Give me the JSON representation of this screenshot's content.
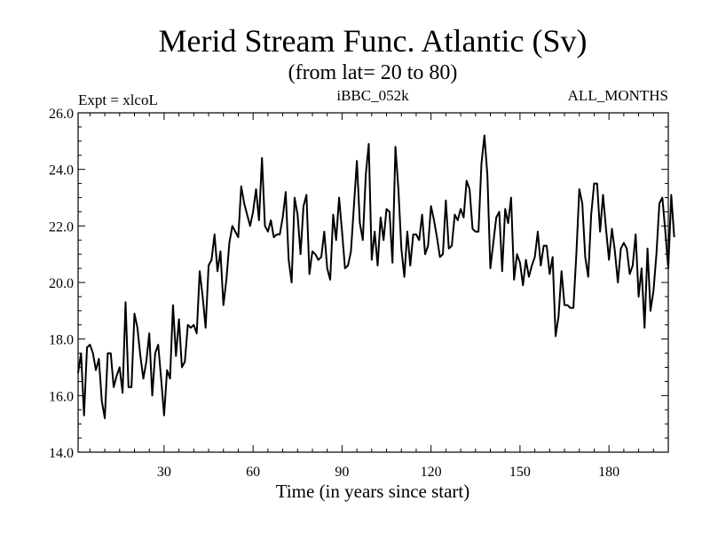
{
  "chart_data": {
    "type": "line",
    "title": "Merid Stream Func. Atlantic (Sv)",
    "subtitle": "(from lat= 20 to 80)",
    "expt_label": "Expt = xlcoL",
    "run_label": "iBBC_052k",
    "months_label": "ALL_MONTHS",
    "xlabel": "Time (in years since start)",
    "ylabel": "",
    "xlim": [
      1,
      200
    ],
    "ylim": [
      14.0,
      26.0
    ],
    "xticks": [
      30,
      60,
      90,
      120,
      150,
      180
    ],
    "xtick_labels": [
      "30",
      "60",
      "90",
      "120",
      "150",
      "180"
    ],
    "yticks": [
      14,
      16,
      18,
      20,
      22,
      24,
      26
    ],
    "ytick_labels": [
      "14.0",
      "16.0",
      "18.0",
      "20.0",
      "22.0",
      "24.0",
      "26.0"
    ],
    "line_color": "#000000",
    "series": [
      {
        "name": "Merid Stream Func.",
        "x_start": 1,
        "x_step": 1,
        "values": [
          16.8,
          17.5,
          15.3,
          17.7,
          17.8,
          17.5,
          16.9,
          17.3,
          15.8,
          15.2,
          17.5,
          17.5,
          16.3,
          16.7,
          17.0,
          16.1,
          19.3,
          16.3,
          16.3,
          18.9,
          18.4,
          17.4,
          16.6,
          17.2,
          18.2,
          16.0,
          17.5,
          17.8,
          16.6,
          15.3,
          16.9,
          16.6,
          19.2,
          17.4,
          18.7,
          17.0,
          17.2,
          18.5,
          18.4,
          18.5,
          18.2,
          20.4,
          19.5,
          18.4,
          20.6,
          20.8,
          21.7,
          20.4,
          21.1,
          19.2,
          20.1,
          21.4,
          22.0,
          21.8,
          21.6,
          23.4,
          22.8,
          22.4,
          22.0,
          22.5,
          23.3,
          22.2,
          24.4,
          22.0,
          21.8,
          22.2,
          21.6,
          21.7,
          21.7,
          22.3,
          23.2,
          20.8,
          20.0,
          23.0,
          22.4,
          21.0,
          22.7,
          23.1,
          20.3,
          21.1,
          21.0,
          20.8,
          20.9,
          21.8,
          20.5,
          20.1,
          22.4,
          21.5,
          23.0,
          21.8,
          20.5,
          20.6,
          21.1,
          22.7,
          24.3,
          22.1,
          21.5,
          23.8,
          24.9,
          20.8,
          21.8,
          20.6,
          22.3,
          21.5,
          22.6,
          22.5,
          20.7,
          24.8,
          23.3,
          21.2,
          20.2,
          21.8,
          20.6,
          21.7,
          21.7,
          21.5,
          22.4,
          21.0,
          21.3,
          22.7,
          22.2,
          21.6,
          20.9,
          21.0,
          22.9,
          21.2,
          21.3,
          22.4,
          22.2,
          22.6,
          22.3,
          23.6,
          23.3,
          21.9,
          21.8,
          21.8,
          24.2,
          25.2,
          23.8,
          20.5,
          21.4,
          22.3,
          22.5,
          20.4,
          22.6,
          22.1,
          23.0,
          20.1,
          21.0,
          20.7,
          19.9,
          20.8,
          20.2,
          20.6,
          20.9,
          21.8,
          20.6,
          21.3,
          21.3,
          20.3,
          20.9,
          18.1,
          18.8,
          20.4,
          19.2,
          19.2,
          19.1,
          19.1,
          21.0,
          23.3,
          22.8,
          20.9,
          20.2,
          22.4,
          23.5,
          23.5,
          21.8,
          23.1,
          21.9,
          20.8,
          21.9,
          21.1,
          20.0,
          21.2,
          21.4,
          21.2,
          20.3,
          20.6,
          21.7,
          19.5,
          20.5,
          18.4,
          21.2,
          19.0,
          19.7,
          21.0,
          22.8,
          23.0,
          21.8,
          20.5,
          23.1,
          21.6
        ]
      }
    ]
  }
}
